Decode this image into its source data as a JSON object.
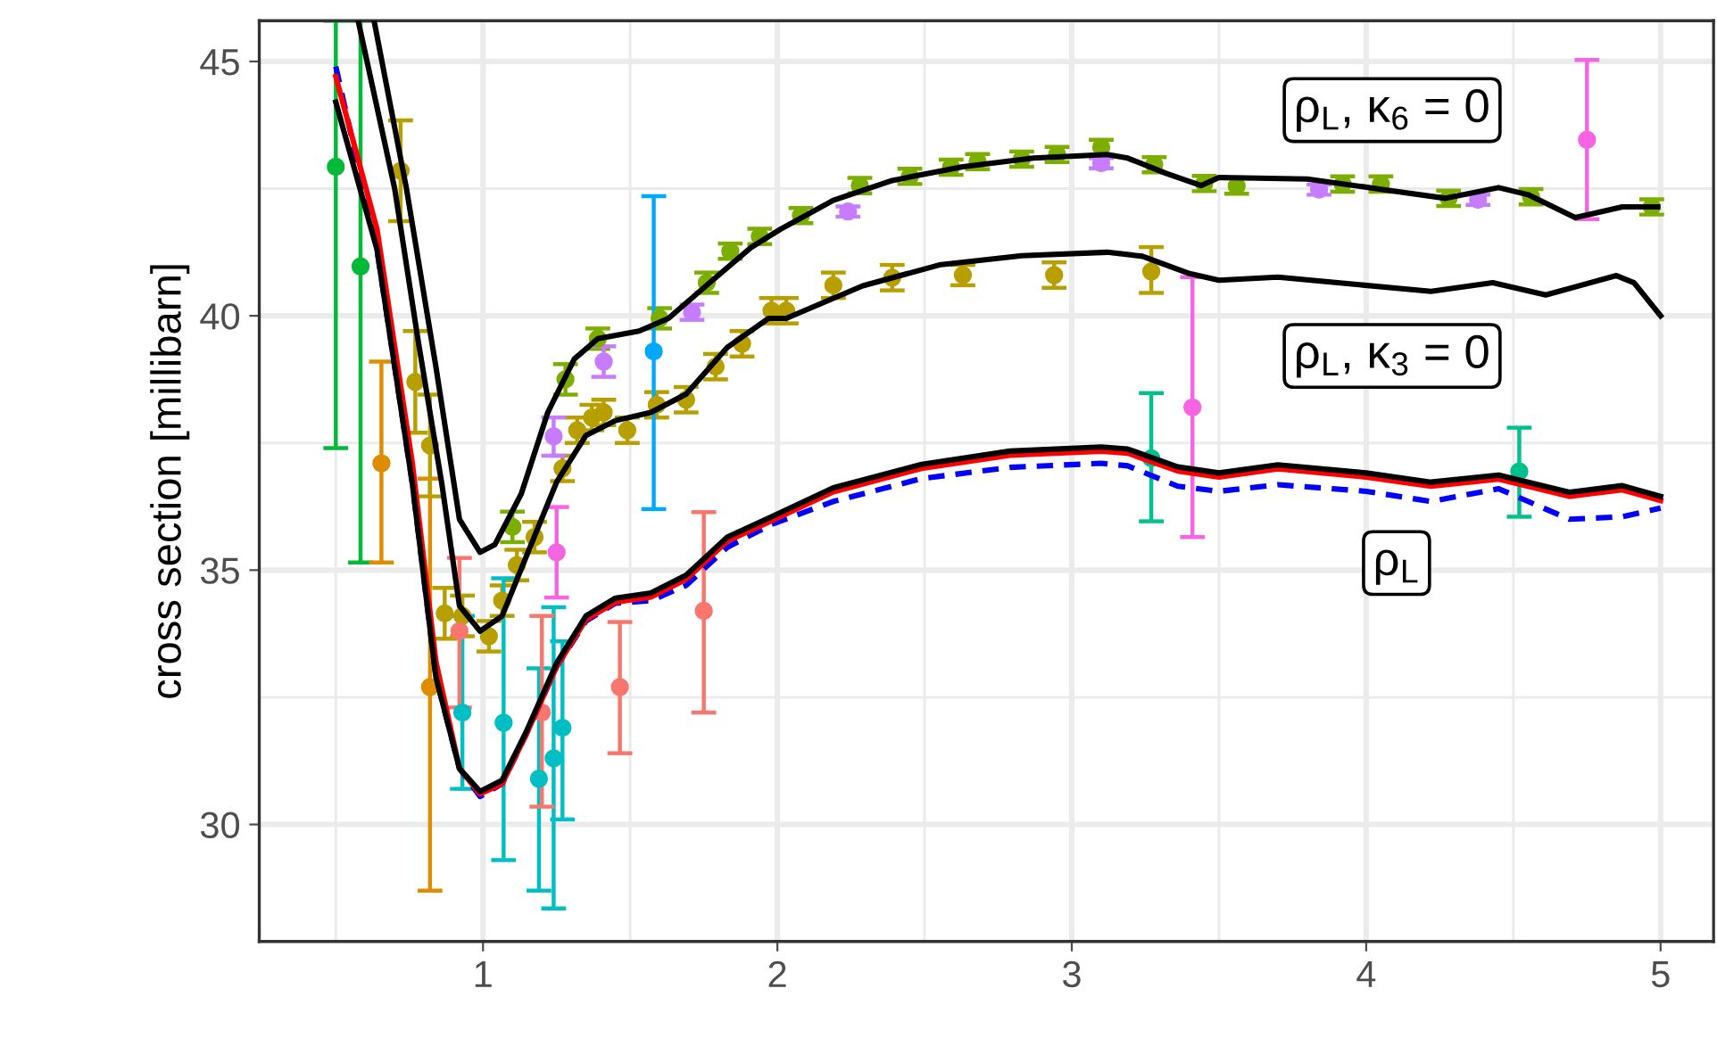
{
  "chart_data": {
    "type": "line",
    "ylabel": "cross section [millibarn]",
    "xlim": [
      0.24,
      5.18
    ],
    "ylim": [
      27.7,
      45.8
    ],
    "xticks": [
      1,
      2,
      3,
      4,
      5
    ],
    "yticks": [
      30,
      35,
      40,
      45
    ],
    "grid": true,
    "marker": "none",
    "annotations": [
      "ρ$_{L}$, κ$_{6}$ = 0",
      "ρ$_{L}$, κ$_{3}$ = 0",
      "ρ$_{L}$"
    ],
    "series": [
      {
        "type": "scatter",
        "marker": "circle",
        "color": "#00ba38",
        "x": [
          0.5,
          0.584
        ],
        "values": [
          42.93,
          40.97
        ],
        "errors": [
          [
            37.4,
            45.8
          ],
          [
            35.15,
            45.8
          ]
        ]
      },
      {
        "type": "scatter",
        "marker": "circle",
        "color": "#de8c00",
        "x": [
          0.655,
          0.82
        ],
        "values": [
          37.1,
          32.7
        ],
        "errors": [
          [
            35.15,
            39.1
          ],
          [
            28.7,
            36.8
          ]
        ]
      },
      {
        "type": "scatter",
        "marker": "circle",
        "color": "#b79f00",
        "x": [
          0.72,
          0.77,
          0.82,
          0.87,
          0.93,
          1.02,
          1.065,
          1.115,
          1.175,
          1.27,
          1.32,
          1.37,
          1.41,
          1.49,
          1.59,
          1.69,
          1.79,
          1.88,
          1.98,
          2.03,
          2.19,
          2.39,
          2.63,
          2.94,
          3.27
        ],
        "values": [
          42.85,
          38.7,
          37.45,
          34.15,
          34.1,
          33.7,
          34.4,
          35.1,
          35.65,
          37.0,
          37.75,
          38.0,
          38.1,
          37.75,
          38.25,
          38.35,
          39.0,
          39.45,
          40.1,
          40.1,
          40.6,
          40.75,
          40.8,
          40.8,
          40.87
        ],
        "errors": [
          [
            41.86,
            43.84
          ],
          1.0,
          1.0,
          0.5,
          0.4,
          0.3,
          0.3,
          0.3,
          0.3,
          0.25,
          0.25,
          0.25,
          0.25,
          0.25,
          0.25,
          0.25,
          0.25,
          0.25,
          0.25,
          0.25,
          0.25,
          0.25,
          0.2,
          0.25,
          [
            40.45,
            41.35
          ]
        ]
      },
      {
        "type": "scatter",
        "marker": "circle",
        "color": "#7cae00",
        "x": [
          1.1,
          1.28,
          1.39,
          1.6,
          1.76,
          1.84,
          1.94,
          2.08,
          2.28,
          2.45,
          2.59,
          2.68,
          2.83,
          2.95,
          3.1,
          3.28,
          3.45,
          3.56,
          3.92,
          4.05,
          4.28,
          4.56,
          4.97
        ],
        "values": [
          35.85,
          38.75,
          39.55,
          39.95,
          40.65,
          41.27,
          41.56,
          41.97,
          42.56,
          42.74,
          42.92,
          43.03,
          43.08,
          43.17,
          43.31,
          42.97,
          42.6,
          42.55,
          42.59,
          42.59,
          42.31,
          42.34,
          42.14
        ],
        "errors": [
          0.3,
          0.3,
          0.2,
          0.2,
          0.2,
          0.15,
          0.15,
          0.15,
          0.15,
          0.15,
          0.15,
          0.15,
          0.15,
          0.15,
          0.15,
          0.15,
          0.15,
          0.15,
          0.15,
          0.15,
          0.15,
          0.15,
          0.15
        ]
      },
      {
        "type": "scatter",
        "marker": "circle",
        "color": "#c77cff",
        "x": [
          1.24,
          1.41,
          1.71,
          2.24,
          3.1,
          3.84,
          4.38
        ],
        "values": [
          37.63,
          39.1,
          40.07,
          42.05,
          43.0,
          42.48,
          42.28
        ],
        "errors": [
          [
            37.25,
            38.0
          ],
          0.3,
          0.15,
          0.1,
          0.1,
          0.1,
          0.1
        ]
      },
      {
        "type": "scatter",
        "marker": "circle",
        "color": "#00bfc4",
        "x": [
          0.93,
          1.07,
          1.19,
          1.24,
          1.27
        ],
        "values": [
          32.2,
          32.0,
          30.9,
          31.3,
          31.9
        ],
        "errors": [
          [
            30.7,
            34.1
          ],
          [
            29.3,
            34.84
          ],
          [
            28.7,
            33.07
          ],
          [
            28.35,
            34.27
          ],
          [
            30.1,
            33.6
          ]
        ]
      },
      {
        "type": "scatter",
        "marker": "circle",
        "color": "#00a9ff",
        "x": [
          1.58
        ],
        "values": [
          39.3
        ],
        "errors": [
          [
            36.2,
            42.35
          ]
        ]
      },
      {
        "type": "scatter",
        "marker": "circle",
        "color": "#f8766d",
        "x": [
          0.92,
          1.2,
          1.465,
          1.75
        ],
        "values": [
          33.8,
          32.2,
          32.7,
          34.2
        ],
        "errors": [
          [
            32.3,
            35.24
          ],
          [
            30.35,
            34.1
          ],
          [
            31.4,
            33.98
          ],
          [
            32.2,
            36.14
          ]
        ]
      },
      {
        "type": "scatter",
        "marker": "circle",
        "color": "#f564e3",
        "x": [
          1.25,
          3.41,
          4.75
        ],
        "values": [
          35.35,
          38.2,
          43.46
        ],
        "errors": [
          [
            34.46,
            36.24
          ],
          [
            35.65,
            40.76
          ],
          [
            41.9,
            45.03
          ]
        ]
      },
      {
        "type": "scatter",
        "marker": "circle",
        "color": "#00c08b",
        "x": [
          3.27,
          4.52
        ],
        "values": [
          37.2,
          36.94
        ],
        "errors": [
          [
            35.96,
            38.48
          ],
          [
            36.05,
            37.8
          ]
        ]
      },
      {
        "color": "#000000",
        "line_style": "solid",
        "x": [
          0.63,
          0.74,
          0.84,
          0.92,
          0.99,
          1.04,
          1.13,
          1.22,
          1.31,
          1.39,
          1.53,
          1.63,
          1.77,
          1.91,
          2.01,
          2.19,
          2.39,
          2.63,
          2.87,
          3.12,
          3.19,
          3.32,
          3.44,
          3.5,
          3.8,
          4.06,
          4.27,
          4.45,
          4.55,
          4.71,
          4.87,
          4.99
        ],
        "values": [
          45.8,
          42.5,
          39.0,
          36.0,
          35.35,
          35.5,
          36.5,
          38.1,
          39.15,
          39.55,
          39.7,
          39.95,
          40.65,
          41.34,
          41.7,
          42.27,
          42.66,
          42.93,
          43.1,
          43.17,
          43.1,
          42.8,
          42.56,
          42.72,
          42.69,
          42.48,
          42.31,
          42.52,
          42.38,
          41.93,
          42.14,
          42.14
        ]
      },
      {
        "color": "#000000",
        "line_style": "solid",
        "x": [
          0.576,
          0.7,
          0.78,
          0.86,
          0.92,
          0.99,
          1.065,
          1.145,
          1.25,
          1.35,
          1.45,
          1.57,
          1.69,
          1.83,
          1.97,
          2.03,
          2.29,
          2.55,
          2.83,
          3.12,
          3.24,
          3.4,
          3.5,
          3.7,
          3.96,
          4.22,
          4.43,
          4.61,
          4.85,
          4.91,
          5.0
        ],
        "values": [
          45.8,
          42.5,
          39.5,
          36.7,
          34.3,
          33.8,
          34.1,
          35.24,
          36.73,
          37.65,
          37.94,
          38.1,
          38.46,
          39.38,
          39.95,
          39.95,
          40.59,
          41.0,
          41.18,
          41.25,
          41.17,
          40.83,
          40.7,
          40.76,
          40.62,
          40.48,
          40.65,
          40.41,
          40.79,
          40.65,
          40.0
        ]
      },
      {
        "color": "#0000ff",
        "line_style": "dashed",
        "x": [
          0.5,
          0.64,
          0.76,
          0.84,
          0.92,
          0.99,
          1.065,
          1.145,
          1.25,
          1.35,
          1.45,
          1.57,
          1.69,
          1.83,
          1.98,
          2.19,
          2.49,
          2.79,
          3.1,
          3.19,
          3.36,
          3.5,
          3.7,
          4.0,
          4.22,
          4.45,
          4.69,
          4.87,
          5.0
        ],
        "values": [
          44.9,
          41.3,
          36.7,
          32.9,
          31.1,
          30.55,
          30.8,
          31.75,
          33.1,
          34.0,
          34.35,
          34.4,
          34.7,
          35.45,
          35.9,
          36.35,
          36.8,
          37.02,
          37.1,
          37.05,
          36.65,
          36.55,
          36.68,
          36.55,
          36.35,
          36.6,
          36.0,
          36.05,
          36.22
        ]
      },
      {
        "color": "#ff0000",
        "line_style": "solid",
        "x": [
          0.5,
          0.64,
          0.76,
          0.84,
          0.92,
          0.99,
          1.065,
          1.145,
          1.25,
          1.35,
          1.45,
          1.57,
          1.69,
          1.83,
          1.98,
          2.19,
          2.49,
          2.79,
          3.1,
          3.19,
          3.36,
          3.5,
          3.7,
          4.0,
          4.22,
          4.45,
          4.69,
          4.87,
          5.0
        ],
        "values": [
          44.7,
          41.7,
          37.1,
          33.2,
          31.1,
          30.6,
          30.8,
          31.75,
          33.1,
          34.03,
          34.37,
          34.47,
          34.82,
          35.57,
          35.97,
          36.54,
          37.0,
          37.26,
          37.34,
          37.3,
          36.95,
          36.83,
          36.99,
          36.83,
          36.65,
          36.79,
          36.45,
          36.58,
          36.37
        ]
      },
      {
        "color": "#000000",
        "line_style": "solid",
        "x": [
          0.5,
          0.64,
          0.76,
          0.84,
          0.92,
          0.99,
          1.065,
          1.145,
          1.25,
          1.35,
          1.45,
          1.57,
          1.69,
          1.83,
          1.98,
          2.19,
          2.49,
          2.79,
          3.1,
          3.19,
          3.36,
          3.5,
          3.7,
          4.0,
          4.22,
          4.45,
          4.69,
          4.87,
          5.0
        ],
        "values": [
          44.2,
          41.3,
          36.7,
          32.9,
          31.1,
          30.65,
          30.87,
          31.8,
          33.17,
          34.1,
          34.45,
          34.55,
          34.9,
          35.65,
          36.05,
          36.62,
          37.08,
          37.34,
          37.42,
          37.38,
          37.03,
          36.91,
          37.07,
          36.91,
          36.73,
          36.87,
          36.53,
          36.66,
          36.45
        ]
      }
    ]
  }
}
